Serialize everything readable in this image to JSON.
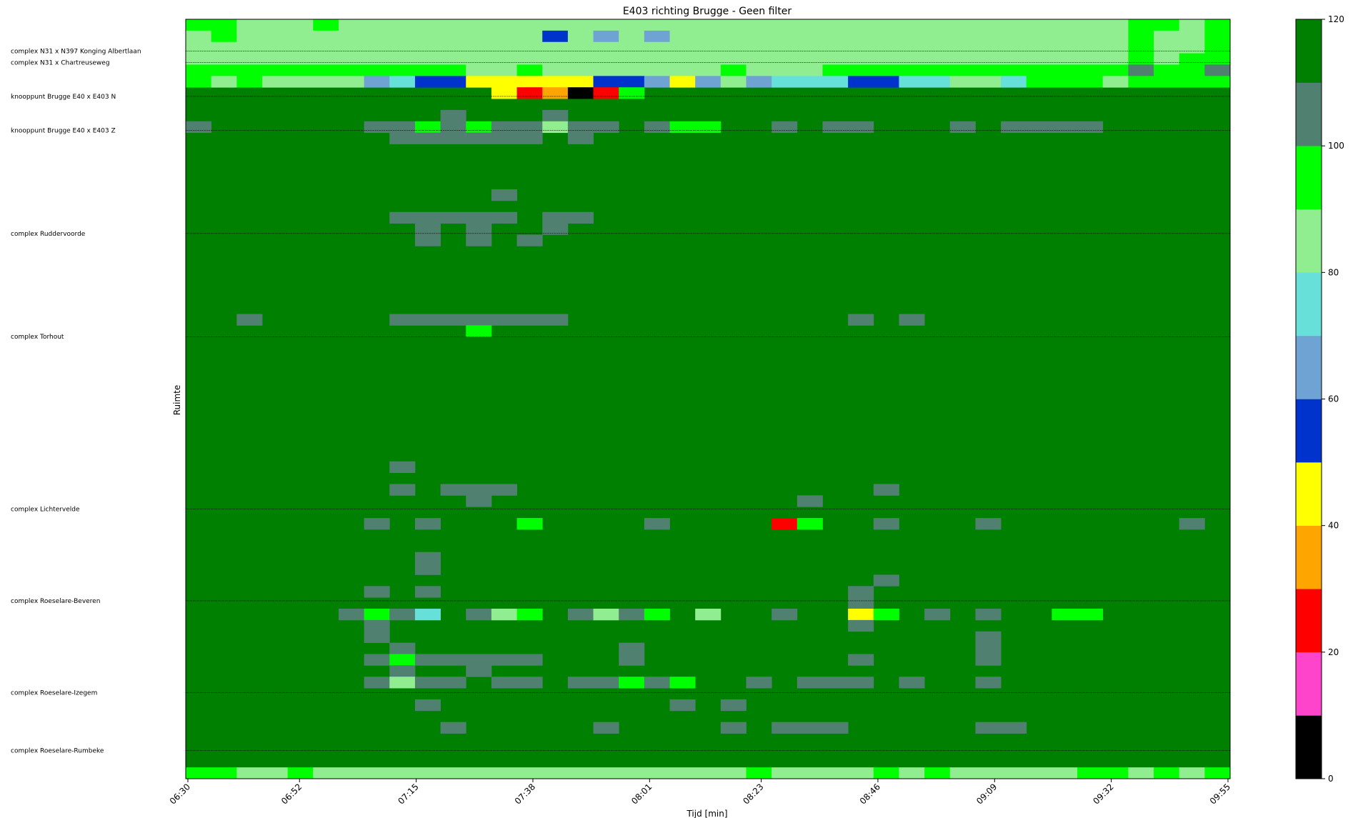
{
  "chart_data": {
    "type": "heatmap",
    "title": "E403 richting Brugge - Geen filter",
    "xlabel": "Tijd [min]",
    "ylabel": "Ruimte",
    "x_tick_labels": [
      "06:30",
      "06:52",
      "07:15",
      "07:38",
      "08:01",
      "08:23",
      "08:46",
      "09:09",
      "09:32",
      "09:55"
    ],
    "time_range": [
      "06:30",
      "09:55"
    ],
    "time_step_min": 5,
    "n_time_bins": 41,
    "n_space_rows": 67,
    "default_value": 115,
    "location_labels": [
      {
        "row": 2.8,
        "label": "complex N31 x N397 Konging Albertlaan"
      },
      {
        "row": 3.8,
        "label": "complex N31 x Chartreuseweg"
      },
      {
        "row": 6.8,
        "label": "knooppunt Brugge E40 x E403 N"
      },
      {
        "row": 9.8,
        "label": "knooppunt Brugge E40 x E403 Z"
      },
      {
        "row": 18.9,
        "label": "complex Ruddervoorde"
      },
      {
        "row": 28.0,
        "label": "complex Torhout"
      },
      {
        "row": 43.2,
        "label": "complex Lichtervelde"
      },
      {
        "row": 51.3,
        "label": "complex Roeselare-Beveren"
      },
      {
        "row": 59.4,
        "label": "complex Roeselare-Izegem"
      },
      {
        "row": 64.5,
        "label": "complex Roeselare-Rumbeke"
      }
    ],
    "colorbar": {
      "min": 0,
      "max": 120,
      "tick_values": [
        0,
        20,
        40,
        60,
        80,
        100,
        120
      ],
      "bounds": [
        0,
        10,
        20,
        30,
        40,
        50,
        60,
        70,
        80,
        90,
        100,
        110,
        120
      ],
      "colors": [
        "#000000",
        "#ff44cc",
        "#ff0000",
        "#ffa500",
        "#ffff00",
        "#0033cc",
        "#6fa3d4",
        "#66e0d8",
        "#90ee90",
        "#00ff00",
        "#4f8070",
        "#008000"
      ]
    },
    "cells": [
      {
        "row": 0,
        "t0": 0,
        "t1": 1,
        "v": 95
      },
      {
        "row": 0,
        "t0": 2,
        "t1": 4,
        "v": 85
      },
      {
        "row": 0,
        "t0": 5,
        "t1": 5,
        "v": 95
      },
      {
        "row": 0,
        "t0": 6,
        "t1": 36,
        "v": 85
      },
      {
        "row": 0,
        "t0": 37,
        "t1": 38,
        "v": 95
      },
      {
        "row": 0,
        "t0": 39,
        "t1": 39,
        "v": 85
      },
      {
        "row": 0,
        "t0": 40,
        "t1": 40,
        "v": 95
      },
      {
        "row": 1,
        "t0": 0,
        "t1": 0,
        "v": 85
      },
      {
        "row": 1,
        "t0": 1,
        "t1": 1,
        "v": 95
      },
      {
        "row": 1,
        "t0": 2,
        "t1": 13,
        "v": 85
      },
      {
        "row": 1,
        "t0": 14,
        "t1": 14,
        "v": 55
      },
      {
        "row": 1,
        "t0": 15,
        "t1": 15,
        "v": 85
      },
      {
        "row": 1,
        "t0": 16,
        "t1": 16,
        "v": 65
      },
      {
        "row": 1,
        "t0": 17,
        "t1": 17,
        "v": 85
      },
      {
        "row": 1,
        "t0": 18,
        "t1": 18,
        "v": 65
      },
      {
        "row": 1,
        "t0": 19,
        "t1": 36,
        "v": 85
      },
      {
        "row": 1,
        "t0": 37,
        "t1": 37,
        "v": 95
      },
      {
        "row": 1,
        "t0": 38,
        "t1": 39,
        "v": 85
      },
      {
        "row": 1,
        "t0": 40,
        "t1": 40,
        "v": 95
      },
      {
        "row": 2,
        "t0": 0,
        "t1": 36,
        "v": 85
      },
      {
        "row": 2,
        "t0": 37,
        "t1": 37,
        "v": 95
      },
      {
        "row": 2,
        "t0": 38,
        "t1": 39,
        "v": 85
      },
      {
        "row": 2,
        "t0": 40,
        "t1": 40,
        "v": 95
      },
      {
        "row": 3,
        "t0": 0,
        "t1": 36,
        "v": 85
      },
      {
        "row": 3,
        "t0": 37,
        "t1": 37,
        "v": 95
      },
      {
        "row": 3,
        "t0": 38,
        "t1": 38,
        "v": 85
      },
      {
        "row": 3,
        "t0": 39,
        "t1": 40,
        "v": 95
      },
      {
        "row": 4,
        "t0": 0,
        "t1": 10,
        "v": 95
      },
      {
        "row": 4,
        "t0": 11,
        "t1": 12,
        "v": 85
      },
      {
        "row": 4,
        "t0": 13,
        "t1": 13,
        "v": 95
      },
      {
        "row": 4,
        "t0": 14,
        "t1": 20,
        "v": 85
      },
      {
        "row": 4,
        "t0": 21,
        "t1": 21,
        "v": 95
      },
      {
        "row": 4,
        "t0": 22,
        "t1": 24,
        "v": 85
      },
      {
        "row": 4,
        "t0": 25,
        "t1": 36,
        "v": 95
      },
      {
        "row": 4,
        "t0": 37,
        "t1": 37,
        "v": 105
      },
      {
        "row": 4,
        "t0": 38,
        "t1": 39,
        "v": 95
      },
      {
        "row": 4,
        "t0": 40,
        "t1": 40,
        "v": 105
      },
      {
        "row": 5,
        "t0": 0,
        "t1": 0,
        "v": 95
      },
      {
        "row": 5,
        "t0": 1,
        "t1": 1,
        "v": 85
      },
      {
        "row": 5,
        "t0": 2,
        "t1": 2,
        "v": 95
      },
      {
        "row": 5,
        "t0": 3,
        "t1": 6,
        "v": 85
      },
      {
        "row": 5,
        "t0": 7,
        "t1": 7,
        "v": 65
      },
      {
        "row": 5,
        "t0": 8,
        "t1": 8,
        "v": 75
      },
      {
        "row": 5,
        "t0": 9,
        "t1": 10,
        "v": 55
      },
      {
        "row": 5,
        "t0": 11,
        "t1": 15,
        "v": 45
      },
      {
        "row": 5,
        "t0": 16,
        "t1": 17,
        "v": 55
      },
      {
        "row": 5,
        "t0": 18,
        "t1": 18,
        "v": 65
      },
      {
        "row": 5,
        "t0": 19,
        "t1": 19,
        "v": 45
      },
      {
        "row": 5,
        "t0": 20,
        "t1": 20,
        "v": 65
      },
      {
        "row": 5,
        "t0": 21,
        "t1": 21,
        "v": 85
      },
      {
        "row": 5,
        "t0": 22,
        "t1": 22,
        "v": 65
      },
      {
        "row": 5,
        "t0": 23,
        "t1": 25,
        "v": 75
      },
      {
        "row": 5,
        "t0": 26,
        "t1": 27,
        "v": 55
      },
      {
        "row": 5,
        "t0": 28,
        "t1": 29,
        "v": 75
      },
      {
        "row": 5,
        "t0": 30,
        "t1": 31,
        "v": 85
      },
      {
        "row": 5,
        "t0": 32,
        "t1": 32,
        "v": 75
      },
      {
        "row": 5,
        "t0": 33,
        "t1": 35,
        "v": 95
      },
      {
        "row": 5,
        "t0": 36,
        "t1": 36,
        "v": 85
      },
      {
        "row": 5,
        "t0": 37,
        "t1": 40,
        "v": 95
      },
      {
        "row": 6,
        "t0": 12,
        "t1": 12,
        "v": 45
      },
      {
        "row": 6,
        "t0": 13,
        "t1": 13,
        "v": 25
      },
      {
        "row": 6,
        "t0": 14,
        "t1": 14,
        "v": 35
      },
      {
        "row": 6,
        "t0": 15,
        "t1": 15,
        "v": 5
      },
      {
        "row": 6,
        "t0": 16,
        "t1": 16,
        "v": 25
      },
      {
        "row": 6,
        "t0": 17,
        "t1": 17,
        "v": 95
      },
      {
        "row": 8,
        "t0": 10,
        "t1": 10,
        "v": 105
      },
      {
        "row": 8,
        "t0": 14,
        "t1": 14,
        "v": 105
      },
      {
        "row": 9,
        "t0": 0,
        "t1": 0,
        "v": 105
      },
      {
        "row": 9,
        "t0": 7,
        "t1": 8,
        "v": 105
      },
      {
        "row": 9,
        "t0": 9,
        "t1": 9,
        "v": 95
      },
      {
        "row": 9,
        "t0": 10,
        "t1": 10,
        "v": 105
      },
      {
        "row": 9,
        "t0": 11,
        "t1": 11,
        "v": 95
      },
      {
        "row": 9,
        "t0": 12,
        "t1": 13,
        "v": 105
      },
      {
        "row": 9,
        "t0": 14,
        "t1": 14,
        "v": 85
      },
      {
        "row": 9,
        "t0": 15,
        "t1": 16,
        "v": 105
      },
      {
        "row": 9,
        "t0": 18,
        "t1": 18,
        "v": 105
      },
      {
        "row": 9,
        "t0": 19,
        "t1": 20,
        "v": 95
      },
      {
        "row": 9,
        "t0": 23,
        "t1": 23,
        "v": 105
      },
      {
        "row": 9,
        "t0": 25,
        "t1": 26,
        "v": 105
      },
      {
        "row": 9,
        "t0": 30,
        "t1": 30,
        "v": 105
      },
      {
        "row": 9,
        "t0": 32,
        "t1": 35,
        "v": 105
      },
      {
        "row": 10,
        "t0": 8,
        "t1": 13,
        "v": 105
      },
      {
        "row": 10,
        "t0": 15,
        "t1": 15,
        "v": 105
      },
      {
        "row": 15,
        "t0": 12,
        "t1": 12,
        "v": 105
      },
      {
        "row": 17,
        "t0": 8,
        "t1": 12,
        "v": 105
      },
      {
        "row": 17,
        "t0": 14,
        "t1": 15,
        "v": 105
      },
      {
        "row": 18,
        "t0": 9,
        "t1": 9,
        "v": 105
      },
      {
        "row": 18,
        "t0": 11,
        "t1": 11,
        "v": 105
      },
      {
        "row": 18,
        "t0": 14,
        "t1": 14,
        "v": 105
      },
      {
        "row": 19,
        "t0": 9,
        "t1": 9,
        "v": 105
      },
      {
        "row": 19,
        "t0": 11,
        "t1": 11,
        "v": 105
      },
      {
        "row": 19,
        "t0": 13,
        "t1": 13,
        "v": 105
      },
      {
        "row": 26,
        "t0": 2,
        "t1": 2,
        "v": 105
      },
      {
        "row": 26,
        "t0": 8,
        "t1": 14,
        "v": 105
      },
      {
        "row": 26,
        "t0": 26,
        "t1": 26,
        "v": 105
      },
      {
        "row": 26,
        "t0": 28,
        "t1": 28,
        "v": 105
      },
      {
        "row": 27,
        "t0": 11,
        "t1": 11,
        "v": 95
      },
      {
        "row": 39,
        "t0": 8,
        "t1": 8,
        "v": 105
      },
      {
        "row": 41,
        "t0": 8,
        "t1": 8,
        "v": 105
      },
      {
        "row": 41,
        "t0": 10,
        "t1": 12,
        "v": 105
      },
      {
        "row": 41,
        "t0": 27,
        "t1": 27,
        "v": 105
      },
      {
        "row": 42,
        "t0": 11,
        "t1": 11,
        "v": 105
      },
      {
        "row": 42,
        "t0": 24,
        "t1": 24,
        "v": 105
      },
      {
        "row": 44,
        "t0": 7,
        "t1": 7,
        "v": 105
      },
      {
        "row": 44,
        "t0": 9,
        "t1": 9,
        "v": 105
      },
      {
        "row": 44,
        "t0": 13,
        "t1": 13,
        "v": 95
      },
      {
        "row": 44,
        "t0": 18,
        "t1": 18,
        "v": 105
      },
      {
        "row": 44,
        "t0": 23,
        "t1": 23,
        "v": 25
      },
      {
        "row": 44,
        "t0": 24,
        "t1": 24,
        "v": 95
      },
      {
        "row": 44,
        "t0": 27,
        "t1": 27,
        "v": 105
      },
      {
        "row": 44,
        "t0": 31,
        "t1": 31,
        "v": 105
      },
      {
        "row": 44,
        "t0": 39,
        "t1": 39,
        "v": 105
      },
      {
        "row": 47,
        "t0": 9,
        "t1": 9,
        "v": 105
      },
      {
        "row": 48,
        "t0": 9,
        "t1": 9,
        "v": 105
      },
      {
        "row": 49,
        "t0": 27,
        "t1": 27,
        "v": 105
      },
      {
        "row": 50,
        "t0": 7,
        "t1": 7,
        "v": 105
      },
      {
        "row": 50,
        "t0": 9,
        "t1": 9,
        "v": 105
      },
      {
        "row": 50,
        "t0": 26,
        "t1": 26,
        "v": 105
      },
      {
        "row": 51,
        "t0": 26,
        "t1": 26,
        "v": 105
      },
      {
        "row": 52,
        "t0": 6,
        "t1": 6,
        "v": 105
      },
      {
        "row": 52,
        "t0": 7,
        "t1": 7,
        "v": 95
      },
      {
        "row": 52,
        "t0": 8,
        "t1": 8,
        "v": 105
      },
      {
        "row": 52,
        "t0": 9,
        "t1": 9,
        "v": 75
      },
      {
        "row": 52,
        "t0": 11,
        "t1": 11,
        "v": 105
      },
      {
        "row": 52,
        "t0": 12,
        "t1": 12,
        "v": 85
      },
      {
        "row": 52,
        "t0": 13,
        "t1": 13,
        "v": 95
      },
      {
        "row": 52,
        "t0": 15,
        "t1": 15,
        "v": 105
      },
      {
        "row": 52,
        "t0": 16,
        "t1": 16,
        "v": 85
      },
      {
        "row": 52,
        "t0": 17,
        "t1": 17,
        "v": 105
      },
      {
        "row": 52,
        "t0": 18,
        "t1": 18,
        "v": 95
      },
      {
        "row": 52,
        "t0": 20,
        "t1": 20,
        "v": 85
      },
      {
        "row": 52,
        "t0": 23,
        "t1": 23,
        "v": 105
      },
      {
        "row": 52,
        "t0": 26,
        "t1": 26,
        "v": 45
      },
      {
        "row": 52,
        "t0": 27,
        "t1": 27,
        "v": 95
      },
      {
        "row": 52,
        "t0": 29,
        "t1": 29,
        "v": 105
      },
      {
        "row": 52,
        "t0": 31,
        "t1": 31,
        "v": 105
      },
      {
        "row": 52,
        "t0": 34,
        "t1": 35,
        "v": 95
      },
      {
        "row": 53,
        "t0": 7,
        "t1": 7,
        "v": 105
      },
      {
        "row": 53,
        "t0": 26,
        "t1": 26,
        "v": 105
      },
      {
        "row": 54,
        "t0": 7,
        "t1": 7,
        "v": 105
      },
      {
        "row": 54,
        "t0": 31,
        "t1": 31,
        "v": 105
      },
      {
        "row": 55,
        "t0": 8,
        "t1": 8,
        "v": 105
      },
      {
        "row": 55,
        "t0": 17,
        "t1": 17,
        "v": 105
      },
      {
        "row": 55,
        "t0": 31,
        "t1": 31,
        "v": 105
      },
      {
        "row": 56,
        "t0": 7,
        "t1": 7,
        "v": 105
      },
      {
        "row": 56,
        "t0": 8,
        "t1": 8,
        "v": 95
      },
      {
        "row": 56,
        "t0": 9,
        "t1": 13,
        "v": 105
      },
      {
        "row": 56,
        "t0": 17,
        "t1": 17,
        "v": 105
      },
      {
        "row": 56,
        "t0": 26,
        "t1": 26,
        "v": 105
      },
      {
        "row": 56,
        "t0": 31,
        "t1": 31,
        "v": 105
      },
      {
        "row": 57,
        "t0": 8,
        "t1": 8,
        "v": 105
      },
      {
        "row": 57,
        "t0": 11,
        "t1": 11,
        "v": 105
      },
      {
        "row": 58,
        "t0": 7,
        "t1": 7,
        "v": 105
      },
      {
        "row": 58,
        "t0": 8,
        "t1": 8,
        "v": 85
      },
      {
        "row": 58,
        "t0": 9,
        "t1": 10,
        "v": 105
      },
      {
        "row": 58,
        "t0": 12,
        "t1": 13,
        "v": 105
      },
      {
        "row": 58,
        "t0": 15,
        "t1": 16,
        "v": 105
      },
      {
        "row": 58,
        "t0": 17,
        "t1": 17,
        "v": 95
      },
      {
        "row": 58,
        "t0": 18,
        "t1": 18,
        "v": 105
      },
      {
        "row": 58,
        "t0": 19,
        "t1": 19,
        "v": 95
      },
      {
        "row": 58,
        "t0": 22,
        "t1": 22,
        "v": 105
      },
      {
        "row": 58,
        "t0": 24,
        "t1": 26,
        "v": 105
      },
      {
        "row": 58,
        "t0": 28,
        "t1": 28,
        "v": 105
      },
      {
        "row": 58,
        "t0": 31,
        "t1": 31,
        "v": 105
      },
      {
        "row": 60,
        "t0": 9,
        "t1": 9,
        "v": 105
      },
      {
        "row": 60,
        "t0": 19,
        "t1": 19,
        "v": 105
      },
      {
        "row": 60,
        "t0": 21,
        "t1": 21,
        "v": 105
      },
      {
        "row": 62,
        "t0": 10,
        "t1": 10,
        "v": 105
      },
      {
        "row": 62,
        "t0": 16,
        "t1": 16,
        "v": 105
      },
      {
        "row": 62,
        "t0": 21,
        "t1": 21,
        "v": 105
      },
      {
        "row": 62,
        "t0": 23,
        "t1": 25,
        "v": 105
      },
      {
        "row": 62,
        "t0": 31,
        "t1": 32,
        "v": 105
      },
      {
        "row": 66,
        "t0": 0,
        "t1": 1,
        "v": 95
      },
      {
        "row": 66,
        "t0": 2,
        "t1": 3,
        "v": 85
      },
      {
        "row": 66,
        "t0": 4,
        "t1": 4,
        "v": 95
      },
      {
        "row": 66,
        "t0": 5,
        "t1": 21,
        "v": 85
      },
      {
        "row": 66,
        "t0": 22,
        "t1": 22,
        "v": 95
      },
      {
        "row": 66,
        "t0": 23,
        "t1": 26,
        "v": 85
      },
      {
        "row": 66,
        "t0": 27,
        "t1": 27,
        "v": 95
      },
      {
        "row": 66,
        "t0": 28,
        "t1": 28,
        "v": 85
      },
      {
        "row": 66,
        "t0": 29,
        "t1": 29,
        "v": 95
      },
      {
        "row": 66,
        "t0": 30,
        "t1": 34,
        "v": 85
      },
      {
        "row": 66,
        "t0": 35,
        "t1": 36,
        "v": 95
      },
      {
        "row": 66,
        "t0": 37,
        "t1": 37,
        "v": 85
      },
      {
        "row": 66,
        "t0": 38,
        "t1": 38,
        "v": 95
      },
      {
        "row": 66,
        "t0": 39,
        "t1": 39,
        "v": 85
      },
      {
        "row": 66,
        "t0": 40,
        "t1": 40,
        "v": 95
      }
    ]
  }
}
